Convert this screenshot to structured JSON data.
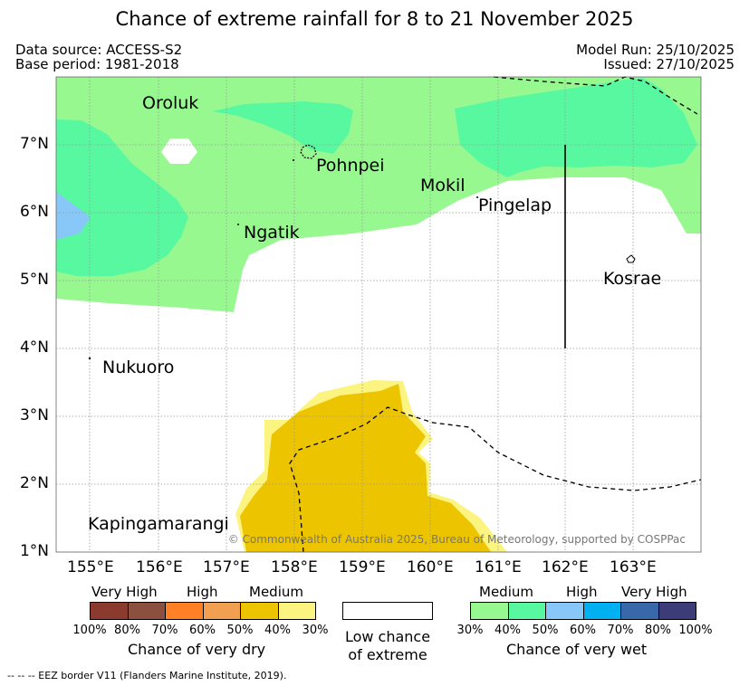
{
  "title": "Chance of extreme rainfall for 8 to 21 November 2025",
  "header": {
    "data_source": "Data source: ACCESS-S2",
    "base_period": "Base period: 1981-2018",
    "model_run": "Model Run: 25/10/2025",
    "issued": "Issued: 27/10/2025"
  },
  "axes": {
    "x_ticks": [
      "155°E",
      "156°E",
      "157°E",
      "158°E",
      "159°E",
      "160°E",
      "161°E",
      "162°E",
      "163°E"
    ],
    "y_ticks": [
      "1°N",
      "2°N",
      "3°N",
      "4°N",
      "5°N",
      "6°N",
      "7°N"
    ]
  },
  "places": [
    "Oroluk",
    "Pohnpei",
    "Mokil",
    "Pingelap",
    "Ngatik",
    "Kosrae",
    "Nukuoro",
    "Kapingamarangi"
  ],
  "copyright": "© Commonwealth of Australia 2025, Bureau of Meteorology, supported by COSPPac",
  "legend": {
    "dry": {
      "headers": [
        "Very High",
        "High",
        "Medium"
      ],
      "colors": [
        "#8b3a2e",
        "#8b5040",
        "#ff8025",
        "#f0a050",
        "#ecc400",
        "#fcf480"
      ],
      "percents": [
        "100%",
        "80%",
        "70%",
        "60%",
        "50%",
        "40%",
        "30%"
      ],
      "title": "Chance of very dry"
    },
    "neutral": {
      "line1": "Low chance",
      "line2": "of extreme"
    },
    "wet": {
      "headers": [
        "Medium",
        "High",
        "Very High"
      ],
      "colors": [
        "#98f890",
        "#58f8a0",
        "#88c8f8",
        "#00b0f0",
        "#3868a8",
        "#3c3c78"
      ],
      "percents": [
        "30%",
        "40%",
        "50%",
        "60%",
        "70%",
        "80%",
        "100%"
      ],
      "title": "Chance of very wet"
    }
  },
  "footnote": "--  --  -- EEZ border V11 (Flanders Marine Institute, 2019)."
}
